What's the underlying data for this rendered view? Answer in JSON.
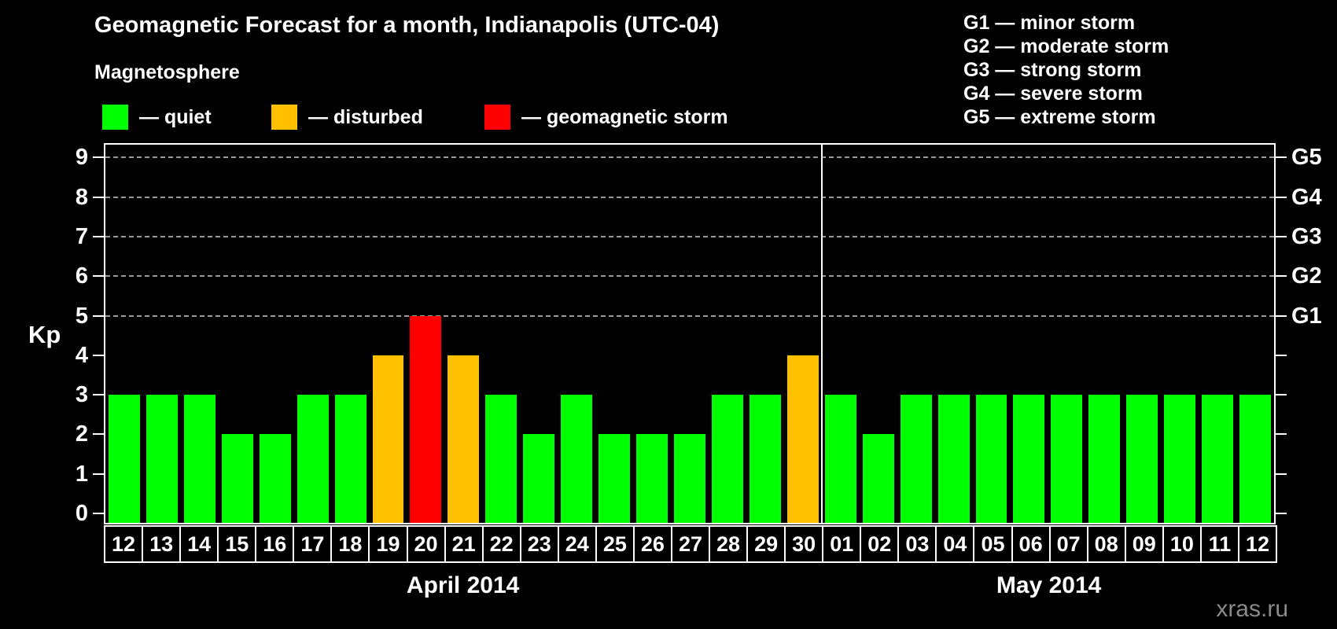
{
  "title": "Geomagnetic Forecast for a month, Indianapolis (UTC-04)",
  "legend": {
    "heading": "Magnetosphere",
    "items": [
      {
        "status": "quiet",
        "label": "— quiet"
      },
      {
        "status": "disturbed",
        "label": "— disturbed"
      },
      {
        "status": "storm",
        "label": "— geomagnetic storm"
      }
    ]
  },
  "storm_scale_legend": [
    "G1 — minor storm",
    "G2 — moderate storm",
    "G3 — strong storm",
    "G4 — severe storm",
    "G5 — extreme storm"
  ],
  "watermark": "xras.ru",
  "chart_data": {
    "type": "bar",
    "title": "Geomagnetic Forecast for a month, Indianapolis (UTC-04)",
    "ylabel": "Kp",
    "ylim": [
      0,
      9
    ],
    "yticks": [
      0,
      1,
      2,
      3,
      4,
      5,
      6,
      7,
      8,
      9
    ],
    "gridlines_kp": [
      5,
      6,
      7,
      8,
      9
    ],
    "grid": "dashed horizontal lines at storm levels G1–G5",
    "legend_position": "top",
    "right_axis": [
      {
        "kp": 5,
        "label": "G1"
      },
      {
        "kp": 6,
        "label": "G2"
      },
      {
        "kp": 7,
        "label": "G3"
      },
      {
        "kp": 8,
        "label": "G4"
      },
      {
        "kp": 9,
        "label": "G5"
      }
    ],
    "status_colors": {
      "quiet": "#00ff00",
      "disturbed": "#ffc000",
      "storm": "#ff0000"
    },
    "months": [
      {
        "label": "April 2014",
        "days": [
          {
            "day": "12",
            "kp": 3,
            "status": "quiet"
          },
          {
            "day": "13",
            "kp": 3,
            "status": "quiet"
          },
          {
            "day": "14",
            "kp": 3,
            "status": "quiet"
          },
          {
            "day": "15",
            "kp": 2,
            "status": "quiet"
          },
          {
            "day": "16",
            "kp": 2,
            "status": "quiet"
          },
          {
            "day": "17",
            "kp": 3,
            "status": "quiet"
          },
          {
            "day": "18",
            "kp": 3,
            "status": "quiet"
          },
          {
            "day": "19",
            "kp": 4,
            "status": "disturbed"
          },
          {
            "day": "20",
            "kp": 5,
            "status": "storm"
          },
          {
            "day": "21",
            "kp": 4,
            "status": "disturbed"
          },
          {
            "day": "22",
            "kp": 3,
            "status": "quiet"
          },
          {
            "day": "23",
            "kp": 2,
            "status": "quiet"
          },
          {
            "day": "24",
            "kp": 3,
            "status": "quiet"
          },
          {
            "day": "25",
            "kp": 2,
            "status": "quiet"
          },
          {
            "day": "26",
            "kp": 2,
            "status": "quiet"
          },
          {
            "day": "27",
            "kp": 2,
            "status": "quiet"
          },
          {
            "day": "28",
            "kp": 3,
            "status": "quiet"
          },
          {
            "day": "29",
            "kp": 3,
            "status": "quiet"
          },
          {
            "day": "30",
            "kp": 4,
            "status": "disturbed"
          }
        ]
      },
      {
        "label": "May 2014",
        "days": [
          {
            "day": "01",
            "kp": 3,
            "status": "quiet"
          },
          {
            "day": "02",
            "kp": 2,
            "status": "quiet"
          },
          {
            "day": "03",
            "kp": 3,
            "status": "quiet"
          },
          {
            "day": "04",
            "kp": 3,
            "status": "quiet"
          },
          {
            "day": "05",
            "kp": 3,
            "status": "quiet"
          },
          {
            "day": "06",
            "kp": 3,
            "status": "quiet"
          },
          {
            "day": "07",
            "kp": 3,
            "status": "quiet"
          },
          {
            "day": "08",
            "kp": 3,
            "status": "quiet"
          },
          {
            "day": "09",
            "kp": 3,
            "status": "quiet"
          },
          {
            "day": "10",
            "kp": 3,
            "status": "quiet"
          },
          {
            "day": "11",
            "kp": 3,
            "status": "quiet"
          },
          {
            "day": "12",
            "kp": 3,
            "status": "quiet"
          }
        ]
      }
    ]
  }
}
